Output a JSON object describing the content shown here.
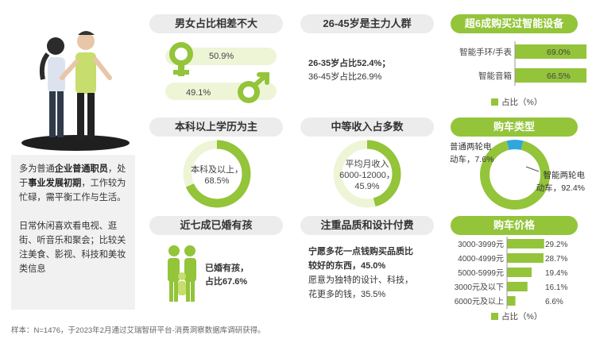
{
  "gender": {
    "title": "男女占比相差不大",
    "female_pct": "50.9%",
    "male_pct": "49.1%"
  },
  "age": {
    "title": "26-45岁是主力人群",
    "line1": "26-35岁占比52.4%；",
    "line2": "36-45岁占比26.9%"
  },
  "education": {
    "title": "本科以上学历为主",
    "label": "本科及以上，",
    "pct": "68.5%"
  },
  "income": {
    "title": "中等收入占多数",
    "label1": "平均月收入",
    "label2": "6000-12000，",
    "pct": "45.9%"
  },
  "marriage": {
    "title": "近七成已婚有孩",
    "label": "已婚有孩，",
    "pct": "占比67.6%"
  },
  "quality": {
    "title": "注重品质和设计付费",
    "bold1": "宁愿多花一点钱购买品质比",
    "bold2": "较好的东西，45.0%",
    "normal1": "愿意为独特的设计、科技，",
    "normal2": "花更多的钱，35.5%"
  },
  "description": {
    "p1_a": "多为普通",
    "p1_b": "企业普通职员",
    "p1_c": "，处于",
    "p1_d": "事业发展初期",
    "p1_e": "，工作较为忙碌，需平衡工作与生活。",
    "p2": "日常休闲喜欢看电视、逛街、听音乐和聚会；比较关注美食、影视、科技和美妆类信息"
  },
  "smart_devices": {
    "title": "超6成购买过智能设备",
    "legend": "占比（%）"
  },
  "vehicle_type": {
    "title": "购车类型"
  },
  "price": {
    "title": "购车价格",
    "legend": "占比（%）"
  },
  "footer": "样本：N=1476，于2023年2月通过艾瑞智研平台-消费洞察数据库调研获得。",
  "colors": {
    "green": "#93c43a",
    "light_green": "#d8ea9a",
    "blue": "#2fa6dc",
    "pill_gray": "#ececec"
  },
  "chart_data": [
    {
      "type": "bar",
      "title": "超6成购买过智能设备",
      "categories": [
        "智能手环/手表",
        "智能音箱"
      ],
      "values": [
        69.0,
        66.5
      ],
      "value_labels": [
        "69.0%",
        "66.5%"
      ],
      "legend": "占比（%）",
      "xlim": [
        0,
        100
      ]
    },
    {
      "type": "pie",
      "title": "购车类型",
      "labels": [
        "普通两轮电动车",
        "智能两轮电动车"
      ],
      "values": [
        7.6,
        92.4
      ],
      "value_labels": [
        "普通两轮电动车，7.6%",
        "智能两轮电动车，92.4%"
      ]
    },
    {
      "type": "bar",
      "title": "购车价格",
      "categories": [
        "3000-3999元",
        "4000-4999元",
        "5000-5999元",
        "3000元及以下",
        "6000元及以上"
      ],
      "values": [
        29.2,
        28.7,
        19.4,
        16.1,
        6.6
      ],
      "value_labels": [
        "29.2%",
        "28.7%",
        "19.4%",
        "16.1%",
        "6.6%"
      ],
      "legend": "占比（%）",
      "xlim": [
        0,
        100
      ]
    }
  ]
}
